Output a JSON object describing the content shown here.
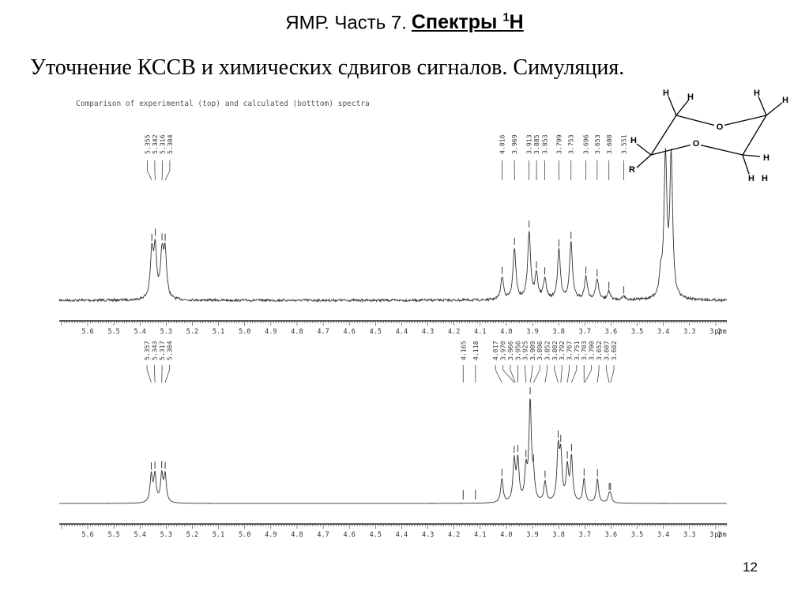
{
  "slide": {
    "title_prefix": "ЯМР. Часть 7.",
    "title_main": "Спектры ",
    "title_sup": "1",
    "title_tail": "H",
    "subtitle": "Уточнение КССВ и химических сдвигов сигналов. Симуляция.",
    "page_number": "12"
  },
  "chart_data": {
    "type": "line",
    "title": "Comparison of  experimental (top) and calculated (botttom) spectra",
    "xlabel": "ppm",
    "xlim": [
      5.7,
      3.1
    ],
    "x_ticks": [
      "5.6",
      "5.5",
      "5.4",
      "5.3",
      "5.2",
      "5.1",
      "5.0",
      "4.9",
      "4.8",
      "4.7",
      "4.6",
      "4.5",
      "4.4",
      "4.3",
      "4.2",
      "4.1",
      "4.0",
      "3.9",
      "3.8",
      "3.7",
      "3.6",
      "3.5",
      "3.4",
      "3.3",
      "3.2"
    ],
    "grid": false,
    "series": [
      {
        "panel": "top",
        "peak_labels": [
          "5.355",
          "5.342",
          "5.316",
          "5.304",
          "4.016",
          "3.969",
          "3.913",
          "3.885",
          "3.853",
          "3.799",
          "3.753",
          "3.696",
          "3.653",
          "3.608",
          "3.551"
        ],
        "peaks": [
          {
            "x": 5.355,
            "y": 0.22
          },
          {
            "x": 5.342,
            "y": 0.24
          },
          {
            "x": 5.316,
            "y": 0.21
          },
          {
            "x": 5.304,
            "y": 0.22
          },
          {
            "x": 4.016,
            "y": 0.11
          },
          {
            "x": 3.969,
            "y": 0.25
          },
          {
            "x": 3.913,
            "y": 0.33
          },
          {
            "x": 3.885,
            "y": 0.12
          },
          {
            "x": 3.853,
            "y": 0.1
          },
          {
            "x": 3.799,
            "y": 0.24
          },
          {
            "x": 3.753,
            "y": 0.28
          },
          {
            "x": 3.696,
            "y": 0.11
          },
          {
            "x": 3.653,
            "y": 0.1
          },
          {
            "x": 3.608,
            "y": 0.04
          },
          {
            "x": 3.551,
            "y": 0.02
          },
          {
            "x": 3.41,
            "y": 0.1
          },
          {
            "x": 3.392,
            "y": 0.68
          },
          {
            "x": 3.37,
            "y": 0.68
          }
        ]
      },
      {
        "panel": "bottom",
        "peak_labels": [
          "5.357",
          "5.343",
          "5.317",
          "5.304",
          "4.165",
          "4.118",
          "4.017",
          "3.970",
          "3.966",
          "3.956",
          "3.925",
          "3.909",
          "3.896",
          "3.852",
          "3.802",
          "3.792",
          "3.767",
          "3.751",
          "3.703",
          "3.700",
          "3.652",
          "3.607",
          "3.602"
        ],
        "peaks": [
          {
            "x": 5.357,
            "y": 0.16
          },
          {
            "x": 5.343,
            "y": 0.16
          },
          {
            "x": 5.317,
            "y": 0.16
          },
          {
            "x": 5.304,
            "y": 0.16
          },
          {
            "x": 4.017,
            "y": 0.14
          },
          {
            "x": 3.97,
            "y": 0.24
          },
          {
            "x": 3.956,
            "y": 0.24
          },
          {
            "x": 3.925,
            "y": 0.18
          },
          {
            "x": 3.909,
            "y": 0.58
          },
          {
            "x": 3.896,
            "y": 0.13
          },
          {
            "x": 3.852,
            "y": 0.12
          },
          {
            "x": 3.802,
            "y": 0.3
          },
          {
            "x": 3.792,
            "y": 0.26
          },
          {
            "x": 3.767,
            "y": 0.2
          },
          {
            "x": 3.751,
            "y": 0.26
          },
          {
            "x": 3.703,
            "y": 0.14
          },
          {
            "x": 3.652,
            "y": 0.14
          },
          {
            "x": 3.607,
            "y": 0.04
          },
          {
            "x": 3.602,
            "y": 0.04
          }
        ]
      }
    ]
  },
  "molecule": {
    "atoms": [
      "H",
      "H",
      "H",
      "H",
      "O",
      "H",
      "O",
      "H",
      "R",
      "H",
      "H"
    ]
  }
}
